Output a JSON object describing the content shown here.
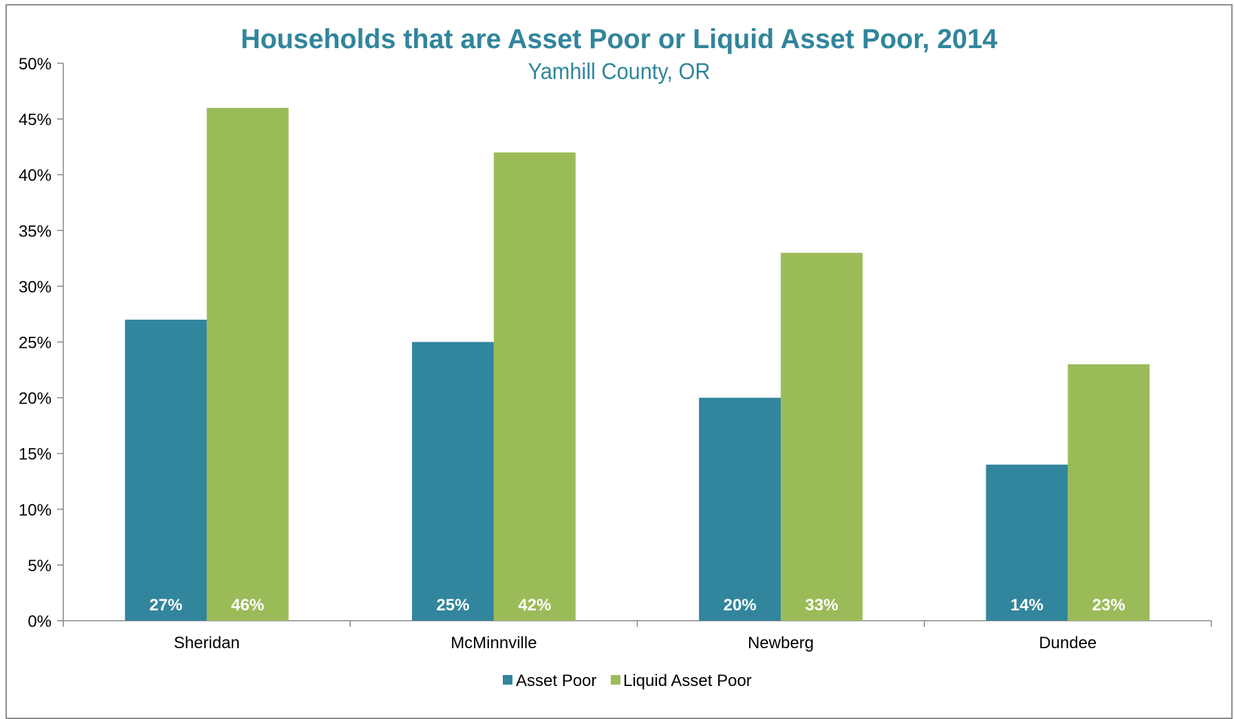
{
  "chart_data": {
    "type": "bar",
    "title": "Households that are Asset Poor or Liquid Asset Poor, 2014",
    "subtitle": "Yamhill County, OR",
    "categories": [
      "Sheridan",
      "McMinnville",
      "Newberg",
      "Dundee"
    ],
    "series": [
      {
        "name": "Asset Poor",
        "values": [
          27,
          25,
          20,
          14
        ],
        "labels": [
          "27%",
          "25%",
          "20%",
          "14%"
        ],
        "color": "#31859c"
      },
      {
        "name": "Liquid Asset Poor",
        "values": [
          46,
          42,
          33,
          23
        ],
        "labels": [
          "46%",
          "42%",
          "33%",
          "23%"
        ],
        "color": "#9bbb59"
      }
    ],
    "ylim": [
      0,
      50
    ],
    "yticks": [
      "0%",
      "5%",
      "10%",
      "15%",
      "20%",
      "25%",
      "30%",
      "35%",
      "40%",
      "45%",
      "50%"
    ],
    "grid": false,
    "legend_position": "bottom"
  }
}
